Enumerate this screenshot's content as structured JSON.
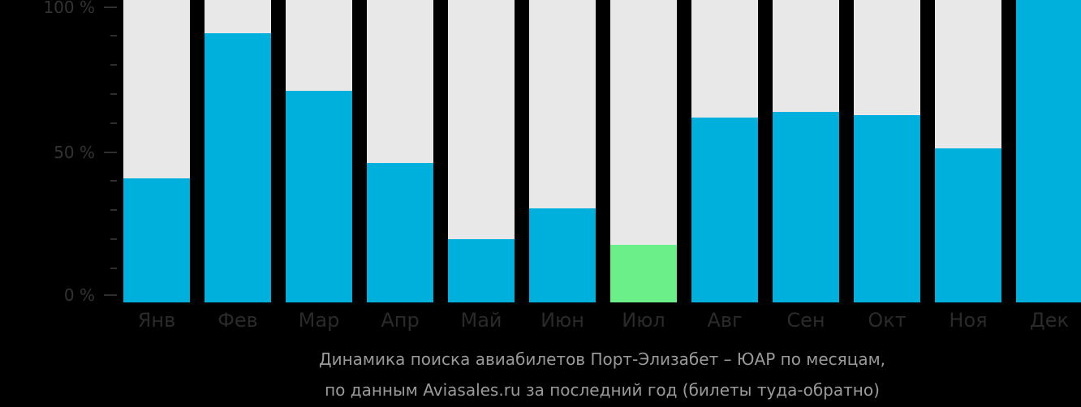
{
  "chart_data": {
    "type": "bar",
    "stacked_percent": true,
    "title": "Динамика поиска авиабилетов Порт-Элизабет – ЮАР по месяцам,",
    "subtitle": "по данным Aviasales.ru за последний год (билеты туда-обратно)",
    "xlabel": "",
    "ylabel": "",
    "ylim": [
      0,
      100
    ],
    "y_ticks": [
      "100 %",
      "50 %",
      "0 %"
    ],
    "grid": false,
    "legend": null,
    "categories": [
      "Янв",
      "Фев",
      "Мар",
      "Апр",
      "Май",
      "Июн",
      "Июл",
      "Авг",
      "Сен",
      "Окт",
      "Ноя",
      "Дек"
    ],
    "values": [
      41,
      89,
      70,
      46,
      21,
      31,
      19,
      61,
      63,
      62,
      51,
      100
    ],
    "highlight_index": 6,
    "colors": {
      "bar": "#00b0dc",
      "highlight": "#6bef88",
      "track": "#e8e8e8",
      "background": "#000000"
    }
  }
}
